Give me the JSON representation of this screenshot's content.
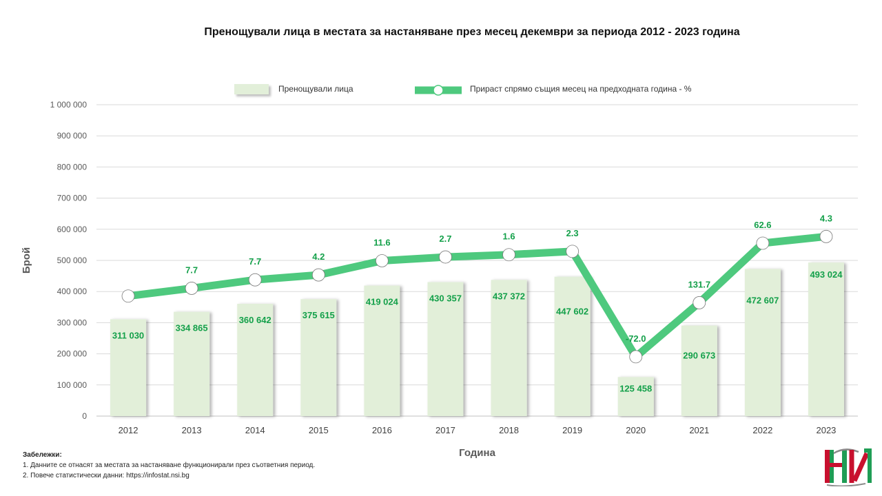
{
  "chart_data": {
    "type": "bar",
    "title": "Пренощували лица в местата за настаняване  през месец декември за периода 2012 - 2023 година",
    "xlabel": "Година",
    "ylabel": "Брой",
    "ylim": [
      0,
      1000000
    ],
    "y_ticks": [
      "0",
      "100 000",
      "200 000",
      "300 000",
      "400 000",
      "500 000",
      "600 000",
      "700 000",
      "800 000",
      "900 000",
      "1 000 000"
    ],
    "y_tick_values": [
      0,
      100000,
      200000,
      300000,
      400000,
      500000,
      600000,
      700000,
      800000,
      900000,
      1000000
    ],
    "grid": true,
    "legend_position": "top",
    "categories": [
      "2012",
      "2013",
      "2014",
      "2015",
      "2016",
      "2017",
      "2018",
      "2019",
      "2020",
      "2021",
      "2022",
      "2023"
    ],
    "series": [
      {
        "name": "Пренощували лица",
        "type": "bar",
        "color": "#e2efd9",
        "values": [
          311030,
          334865,
          360642,
          375615,
          419024,
          430357,
          437372,
          447602,
          125458,
          290673,
          472607,
          493024
        ],
        "data_labels": [
          "311 030",
          "334 865",
          "360 642",
          "375 615",
          "419 024",
          "430 357",
          "437 372",
          "447 602",
          "125 458",
          "290 673",
          "472 607",
          "493 024"
        ]
      },
      {
        "name": "Прираст спрямо същия месец на предходната година - %",
        "type": "line",
        "color": "#4ec97e",
        "values": [
          null,
          7.7,
          7.7,
          4.2,
          11.6,
          2.7,
          1.6,
          2.3,
          -72.0,
          131.7,
          62.6,
          4.3
        ],
        "data_labels": [
          "",
          "7.7",
          "7.7",
          "4.2",
          "11.6",
          "2.7",
          "1.6",
          "2.3",
          "-72.0",
          "131.7",
          "62.6",
          "4.3"
        ]
      }
    ],
    "label_color": "#14a04a"
  },
  "notes": {
    "title": "Забележки:",
    "lines": [
      "1. Данните се отнасят за местата за настаняване функционирали през съответния период.",
      "2. Повече статистически данни: https://infostat.nsi.bg"
    ]
  },
  "logo": {
    "icon": "nsi-logo-icon",
    "colors": {
      "red": "#c8102e",
      "green": "#1f9d55",
      "grey": "#8a8a8a"
    }
  }
}
